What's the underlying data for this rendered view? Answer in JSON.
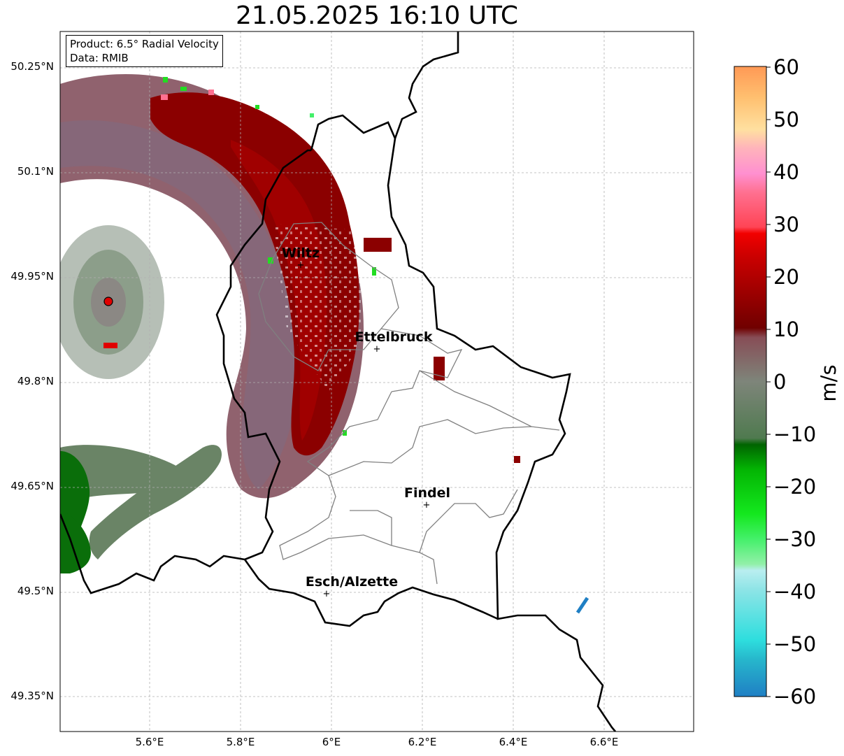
{
  "title": "21.05.2025 16:10 UTC",
  "info": {
    "product": "Product: 6.5° Radial Velocity",
    "source": "Data: RMIB"
  },
  "axes": {
    "lat_labels": [
      "50.25°N",
      "50.1°N",
      "49.95°N",
      "49.8°N",
      "49.65°N",
      "49.5°N",
      "49.35°N"
    ],
    "lon_labels": [
      "5.6°E",
      "5.8°E",
      "6°E",
      "6.2°E",
      "6.4°E",
      "6.6°E"
    ],
    "gridlines": true
  },
  "cities": [
    {
      "name": "Wiltz"
    },
    {
      "name": "Ettelbruck"
    },
    {
      "name": "Findel"
    },
    {
      "name": "Esch/Alzette"
    }
  ],
  "colorbar": {
    "unit": "m/s",
    "ticks": [
      "60",
      "50",
      "40",
      "30",
      "20",
      "10",
      "0",
      "−10",
      "−20",
      "−30",
      "−40",
      "−50",
      "−60"
    ],
    "min": -60,
    "max": 60
  },
  "colors": {
    "outbound_dark": "#8b0000",
    "outbound_mid": "#b30000",
    "near_zero_pos": "#8a5a66",
    "near_zero_neg": "#6a8466",
    "inbound_dark": "#0a6e0a",
    "inbound_bright": "#22dd22",
    "border": "#000000",
    "canton_border": "#808080",
    "radar_site": "#e00000"
  }
}
